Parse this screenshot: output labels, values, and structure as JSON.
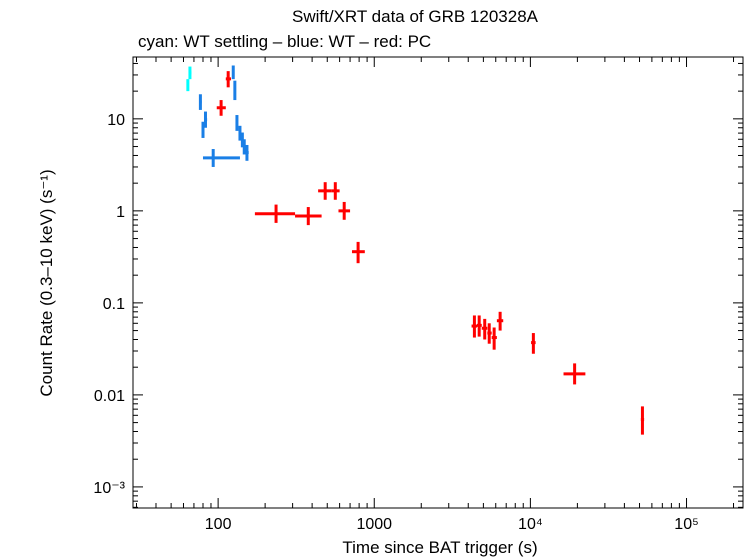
{
  "chart_data": {
    "type": "scatter",
    "title": "Swift/XRT data of GRB 120328A",
    "subtitle": "cyan: WT settling – blue: WT – red: PC",
    "xlabel": "Time since BAT trigger (s)",
    "ylabel": "Count Rate (0.3–10 keV) (s⁻¹)",
    "xscale": "log",
    "yscale": "log",
    "xlim": [
      28.5,
      230000
    ],
    "ylim": [
      0.00059,
      47
    ],
    "xticks": [
      {
        "v": 100,
        "label": "100"
      },
      {
        "v": 1000,
        "label": "1000"
      },
      {
        "v": 10000,
        "label": "10⁴"
      },
      {
        "v": 100000,
        "label": "10⁵"
      }
    ],
    "yticks": [
      {
        "v": 10,
        "label": "10"
      },
      {
        "v": 1,
        "label": "1"
      },
      {
        "v": 0.1,
        "label": "0.1"
      },
      {
        "v": 0.01,
        "label": "0.01"
      },
      {
        "v": 0.001,
        "label": "10⁻³"
      }
    ],
    "grid": false,
    "series": [
      {
        "color": "#00ffff",
        "points": [
          {
            "x": 64,
            "y": 23.4,
            "xerr": [
              63,
              65
            ],
            "yerr": [
              20,
              27
            ]
          },
          {
            "x": 66,
            "y": 31.6,
            "xerr": [
              65,
              67.5
            ],
            "yerr": [
              27,
              37
            ]
          }
        ]
      },
      {
        "color": "#1a7fe6",
        "points": [
          {
            "x": 77,
            "y": 15.3,
            "xerr": [
              75.5,
              78.5
            ],
            "yerr": [
              12.5,
              18.5
            ]
          },
          {
            "x": 80,
            "y": 7.6,
            "xerr": [
              78.5,
              81.5
            ],
            "yerr": [
              6.2,
              9.3
            ]
          },
          {
            "x": 83,
            "y": 9.8,
            "xerr": [
              81.5,
              85
            ],
            "yerr": [
              8,
              12
            ]
          },
          {
            "x": 93,
            "y": 3.77,
            "xerr": [
              80,
              138
            ],
            "yerr": [
              3.0,
              4.7
            ]
          },
          {
            "x": 125,
            "y": 32,
            "xerr": [
              123,
              127
            ],
            "yerr": [
              27,
              38
            ]
          },
          {
            "x": 128,
            "y": 20.7,
            "xerr": [
              126,
              130
            ],
            "yerr": [
              16,
              26
            ]
          },
          {
            "x": 132,
            "y": 9.0,
            "xerr": [
              130,
              134
            ],
            "yerr": [
              7.4,
              11
            ]
          },
          {
            "x": 138,
            "y": 7.0,
            "xerr": [
              136,
              140
            ],
            "yerr": [
              5.8,
              8.4
            ]
          },
          {
            "x": 143,
            "y": 5.9,
            "xerr": [
              141,
              145
            ],
            "yerr": [
              4.9,
              7.1
            ]
          },
          {
            "x": 147,
            "y": 5.0,
            "xerr": [
              145,
              150
            ],
            "yerr": [
              4.1,
              6.0
            ]
          },
          {
            "x": 153,
            "y": 4.3,
            "xerr": [
              150,
              157
            ],
            "yerr": [
              3.5,
              5.2
            ]
          }
        ]
      },
      {
        "color": "#ff0000",
        "points": [
          {
            "x": 104.5,
            "y": 13.2,
            "xerr": [
              98,
              112
            ],
            "yerr": [
              10.8,
              16
            ]
          },
          {
            "x": 116,
            "y": 27.2,
            "xerr": [
              112,
              121
            ],
            "yerr": [
              22,
              33
            ]
          },
          {
            "x": 235,
            "y": 0.93,
            "xerr": [
              172,
              311
            ],
            "yerr": [
              0.74,
              1.17
            ]
          },
          {
            "x": 378,
            "y": 0.88,
            "xerr": [
              311,
              460
            ],
            "yerr": [
              0.7,
              1.1
            ]
          },
          {
            "x": 485,
            "y": 1.65,
            "xerr": [
              437,
              530
            ],
            "yerr": [
              1.32,
              2.05
            ]
          },
          {
            "x": 563,
            "y": 1.65,
            "xerr": [
              530,
              600
            ],
            "yerr": [
              1.32,
              2.05
            ]
          },
          {
            "x": 642,
            "y": 1.0,
            "xerr": [
              590,
              700
            ],
            "yerr": [
              0.8,
              1.25
            ]
          },
          {
            "x": 788,
            "y": 0.36,
            "xerr": [
              720,
              870
            ],
            "yerr": [
              0.27,
              0.46
            ]
          },
          {
            "x": 4380,
            "y": 0.056,
            "xerr": [
              4200,
              4550
            ],
            "yerr": [
              0.042,
              0.073
            ]
          },
          {
            "x": 4700,
            "y": 0.057,
            "xerr": [
              4550,
              4880
            ],
            "yerr": [
              0.043,
              0.073
            ]
          },
          {
            "x": 5100,
            "y": 0.053,
            "xerr": [
              4880,
              5300
            ],
            "yerr": [
              0.04,
              0.067
            ]
          },
          {
            "x": 5450,
            "y": 0.047,
            "xerr": [
              5300,
              5650
            ],
            "yerr": [
              0.036,
              0.06
            ]
          },
          {
            "x": 5860,
            "y": 0.042,
            "xerr": [
              5650,
              6100
            ],
            "yerr": [
              0.031,
              0.054
            ]
          },
          {
            "x": 6400,
            "y": 0.064,
            "xerr": [
              6100,
              6700
            ],
            "yerr": [
              0.05,
              0.08
            ]
          },
          {
            "x": 10450,
            "y": 0.037,
            "xerr": [
              10100,
              10800
            ],
            "yerr": [
              0.028,
              0.047
            ]
          },
          {
            "x": 19200,
            "y": 0.0169,
            "xerr": [
              16300,
              22500
            ],
            "yerr": [
              0.013,
              0.022
            ]
          },
          {
            "x": 52200,
            "y": 0.0054,
            "xerr": [
              51000,
              53500
            ],
            "yerr": [
              0.0037,
              0.0075
            ]
          }
        ]
      }
    ]
  }
}
